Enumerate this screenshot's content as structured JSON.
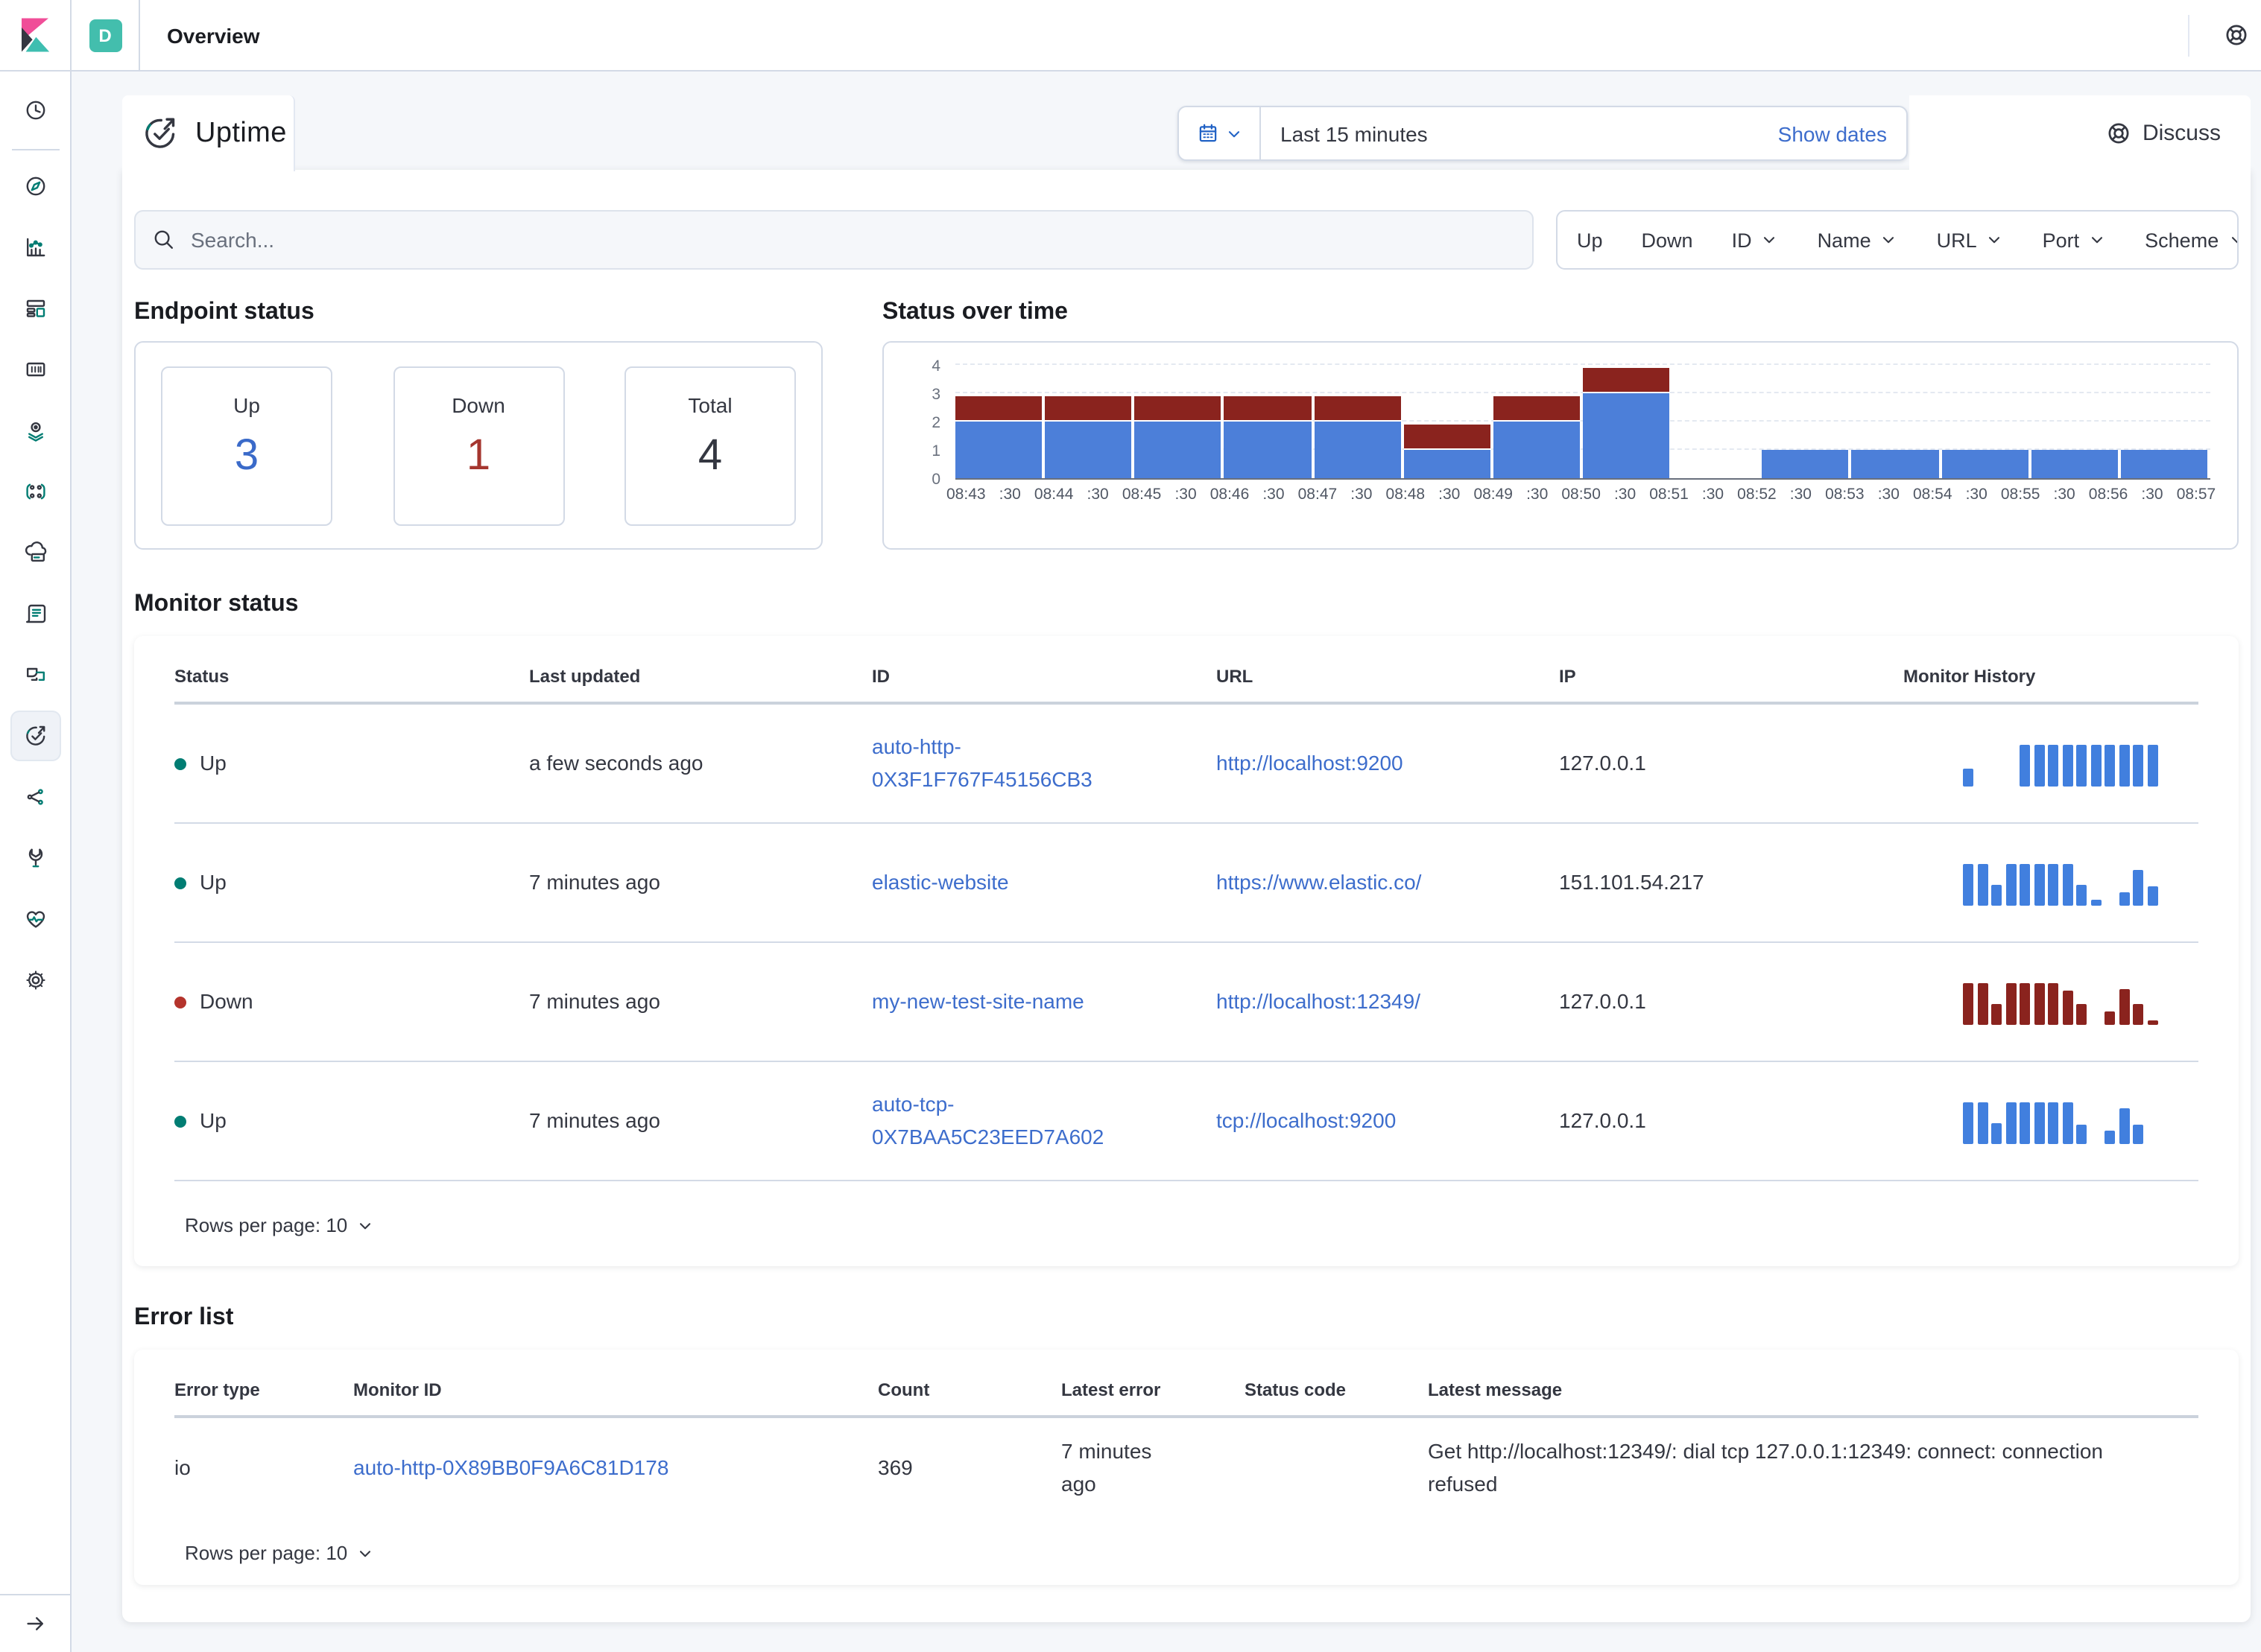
{
  "topbar": {
    "space_badge": "D",
    "breadcrumb": "Overview",
    "logo_icon": "kibana-logo",
    "help_icon": "life-ring-icon"
  },
  "sidebar": {
    "items": [
      {
        "name": "recently-viewed",
        "icon": "clock-icon"
      },
      {
        "name": "discover",
        "icon": "compass-icon"
      },
      {
        "name": "visualize",
        "icon": "bar-chart-icon"
      },
      {
        "name": "dashboard",
        "icon": "dashboard-icon"
      },
      {
        "name": "canvas",
        "icon": "canvas-icon"
      },
      {
        "name": "maps",
        "icon": "map-pin-icon"
      },
      {
        "name": "machine-learning",
        "icon": "ml-nodes-icon"
      },
      {
        "name": "infrastructure",
        "icon": "cloud-server-icon"
      },
      {
        "name": "logs",
        "icon": "scroll-icon"
      },
      {
        "name": "apm",
        "icon": "apm-icon"
      },
      {
        "name": "uptime",
        "icon": "uptime-icon",
        "active": true
      },
      {
        "name": "siem",
        "icon": "share-nodes-icon"
      },
      {
        "name": "dev-tools",
        "icon": "wrench-icon"
      },
      {
        "name": "stack-monitoring",
        "icon": "heartbeat-icon"
      },
      {
        "name": "management",
        "icon": "gear-icon"
      }
    ],
    "collapse_icon": "arrow-right-icon"
  },
  "header": {
    "app_title": "Uptime",
    "app_icon": "uptime-logo",
    "calendar_icon": "calendar-icon",
    "time_range": "Last 15 minutes",
    "show_dates_label": "Show dates",
    "discuss_label": "Discuss",
    "discuss_icon": "life-ring-icon"
  },
  "search": {
    "placeholder": "Search...",
    "icon": "search-icon"
  },
  "filters": {
    "toggles": [
      "Up",
      "Down"
    ],
    "dropdowns": [
      "ID",
      "Name",
      "URL",
      "Port",
      "Scheme"
    ]
  },
  "endpoint_status": {
    "title": "Endpoint status",
    "cards": [
      {
        "label": "Up",
        "value": "3",
        "color": "#3A6AC9"
      },
      {
        "label": "Down",
        "value": "1",
        "color": "#A5362F"
      },
      {
        "label": "Total",
        "value": "4",
        "color": "#343741"
      }
    ]
  },
  "chart_data": {
    "type": "bar",
    "title": "Status over time",
    "stacked": true,
    "categories": [
      "08:43",
      "08:44",
      "08:45",
      "08:46",
      "08:47",
      "08:48",
      "08:49",
      "08:50",
      "08:51",
      "08:52",
      "08:53",
      "08:54",
      "08:55",
      "08:56"
    ],
    "series": [
      {
        "name": "Up",
        "color": "#4C7FD9",
        "values": [
          2,
          2,
          2,
          2,
          2,
          1,
          2,
          3,
          0,
          1,
          1,
          1,
          1,
          1
        ]
      },
      {
        "name": "Down",
        "color": "#8A231E",
        "values": [
          1,
          1,
          1,
          1,
          1,
          1,
          1,
          1,
          0,
          0,
          0,
          0,
          0,
          0
        ]
      }
    ],
    "x_labels": [
      "08:43",
      ":30",
      "08:44",
      ":30",
      "08:45",
      ":30",
      "08:46",
      ":30",
      "08:47",
      ":30",
      "08:48",
      ":30",
      "08:49",
      ":30",
      "08:50",
      ":30",
      "08:51",
      ":30",
      "08:52",
      ":30",
      "08:53",
      ":30",
      "08:54",
      ":30",
      "08:55",
      ":30",
      "08:56",
      ":30",
      "08:57"
    ],
    "ylim": [
      0,
      4
    ],
    "yticks": [
      0,
      1,
      2,
      3,
      4
    ],
    "grid": "dashed-horizontal",
    "legend": "none"
  },
  "monitor_table": {
    "title": "Monitor status",
    "columns": [
      "Status",
      "Last updated",
      "ID",
      "URL",
      "IP",
      "Monitor History"
    ],
    "rows": [
      {
        "status": "Up",
        "status_color": "#017D73",
        "last_updated": "a few seconds ago",
        "id": "auto-http-0X3F1F767F45156CB3",
        "url": "http://localhost:9200",
        "ip": "127.0.0.1",
        "history": {
          "color": "#417FDE",
          "bars": [
            0.4,
            0,
            0,
            0,
            1,
            1,
            1,
            1,
            1,
            1,
            1,
            1,
            1,
            1
          ]
        }
      },
      {
        "status": "Up",
        "status_color": "#017D73",
        "last_updated": "7 minutes ago",
        "id": "elastic-website",
        "url": "https://www.elastic.co/",
        "ip": "151.101.54.217",
        "history": {
          "color": "#417FDE",
          "bars": [
            1,
            1,
            0.5,
            1,
            1,
            1,
            1,
            1,
            0.5,
            0.14,
            0,
            0.32,
            0.85,
            0.45
          ]
        }
      },
      {
        "status": "Down",
        "status_color": "#B4342C",
        "last_updated": "7 minutes ago",
        "id": "my-new-test-site-name",
        "url": "http://localhost:12349/",
        "ip": "127.0.0.1",
        "history": {
          "color": "#8A231E",
          "bars": [
            1,
            1,
            0.5,
            1,
            1,
            1,
            1,
            0.8,
            0.5,
            0,
            0.3,
            0.85,
            0.5,
            0.1
          ]
        }
      },
      {
        "status": "Up",
        "status_color": "#017D73",
        "last_updated": "7 minutes ago",
        "id": "auto-tcp-0X7BAA5C23EED7A602",
        "url": "tcp://localhost:9200",
        "ip": "127.0.0.1",
        "history": {
          "color": "#417FDE",
          "bars": [
            1,
            1,
            0.5,
            1,
            1,
            1,
            1,
            1,
            0.45,
            0,
            0.3,
            0.85,
            0.45
          ]
        }
      }
    ],
    "rows_per_page": "Rows per page: 10"
  },
  "error_table": {
    "title": "Error list",
    "columns": [
      "Error type",
      "Monitor ID",
      "Count",
      "Latest error",
      "Status code",
      "Latest message"
    ],
    "rows": [
      {
        "error_type": "io",
        "monitor_id": "auto-http-0X89BB0F9A6C81D178",
        "count": "369",
        "latest_error": "7 minutes ago",
        "status_code": "",
        "latest_message": "Get http://localhost:12349/: dial tcp 127.0.0.1:12349: connect: connection refused"
      }
    ],
    "rows_per_page": "Rows per page: 10"
  },
  "colors": {
    "link": "#3D6DCC",
    "up_dot": "#017D73",
    "down_dot": "#B4342C",
    "chart_up": "#4C7FD9",
    "chart_down": "#8A231E",
    "accent_teal": "#43BEAD",
    "border": "#D3DAE6",
    "text": "#343741",
    "subdued": "#69707D",
    "page_bg": "#F5F7FA"
  }
}
